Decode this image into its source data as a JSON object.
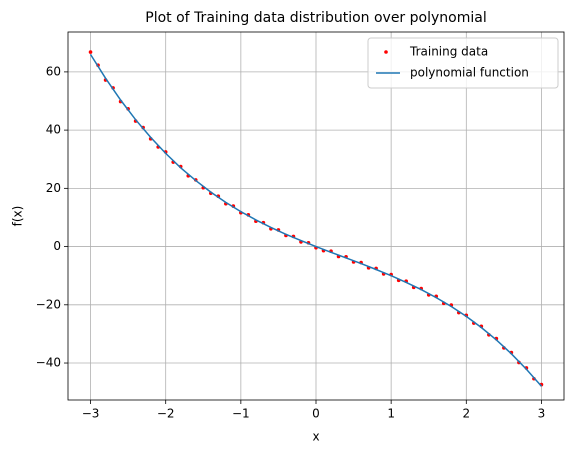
{
  "chart_data": {
    "type": "scatter_line",
    "title": "Plot of Training data distribution over polynomial",
    "xlabel": "x",
    "ylabel": "f(x)",
    "xlim": [
      -3.3,
      3.3
    ],
    "ylim": [
      -52.7,
      73.7
    ],
    "xticks": [
      {
        "value": -3,
        "label": "−3"
      },
      {
        "value": -2,
        "label": "−2"
      },
      {
        "value": -1,
        "label": "−1"
      },
      0,
      1,
      2,
      3
    ],
    "yticks": [
      {
        "value": -40,
        "label": "−40"
      },
      {
        "value": -20,
        "label": "−20"
      },
      0,
      20,
      40,
      60
    ],
    "grid": true,
    "legend": "upper right",
    "scatter": {
      "name": "Training data",
      "color": "#ff0000",
      "x": [
        -3,
        -2.9,
        -2.8,
        -2.7,
        -2.6,
        -2.5,
        -2.4,
        -2.3,
        -2.2,
        -2.1,
        -2,
        -1.9,
        -1.8,
        -1.7,
        -1.6,
        -1.5,
        -1.4,
        -1.3,
        -1.2,
        -1.1,
        -1,
        -0.9,
        -0.8,
        -0.7,
        -0.6,
        -0.5,
        -0.4,
        -0.3,
        -0.2,
        -0.1,
        0,
        0.1,
        0.2,
        0.3,
        0.4,
        0.5,
        0.6,
        0.7,
        0.8,
        0.9,
        1,
        1.1,
        1.2,
        1.3,
        1.4,
        1.5,
        1.6,
        1.7,
        1.8,
        1.9,
        2,
        2.1,
        2.2,
        2.3,
        2.4,
        2.5,
        2.6,
        2.7,
        2.8,
        2.9,
        3
      ],
      "values": [
        66.8,
        62.3,
        57.2,
        54.5,
        49.8,
        47.3,
        43.1,
        40.9,
        37.0,
        34.2,
        32.5,
        29.0,
        27.5,
        24.3,
        22.9,
        20.2,
        18.3,
        17.3,
        14.7,
        13.9,
        11.6,
        10.9,
        8.7,
        8.2,
        6.1,
        5.7,
        3.8,
        3.5,
        1.6,
        1.3,
        -0.4,
        -1.4,
        -1.6,
        -3.4,
        -3.5,
        -5.3,
        -5.5,
        -7.3,
        -7.5,
        -9.4,
        -9.6,
        -11.6,
        -11.9,
        -14.0,
        -14.4,
        -16.6,
        -17.1,
        -19.5,
        -20.1,
        -22.7,
        -23.6,
        -26.3,
        -27.4,
        -30.3,
        -31.6,
        -34.8,
        -36.4,
        -39.8,
        -41.7,
        -45.4,
        -47.4
      ]
    },
    "line": {
      "name": "polynomial function",
      "color": "#1f77b4",
      "x": [
        -3,
        -2.8,
        -2.6,
        -2.4,
        -2.2,
        -2,
        -1.8,
        -1.6,
        -1.4,
        -1.2,
        -1,
        -0.8,
        -0.6,
        -0.4,
        -0.2,
        0,
        0.2,
        0.4,
        0.6,
        0.8,
        1,
        1.2,
        1.4,
        1.6,
        1.8,
        2,
        2.2,
        2.4,
        2.6,
        2.8,
        3
      ],
      "values": [
        66,
        57.79,
        50.34,
        43.58,
        37.49,
        32,
        27.07,
        22.66,
        18.7,
        15.17,
        12,
        9.15,
        6.58,
        4.22,
        2.05,
        0,
        -1.97,
        -3.9,
        -5.86,
        -7.87,
        -10,
        -12.29,
        -14.78,
        -17.54,
        -20.59,
        -24,
        -27.81,
        -32.06,
        -36.82,
        -42.11,
        -48
      ]
    }
  }
}
